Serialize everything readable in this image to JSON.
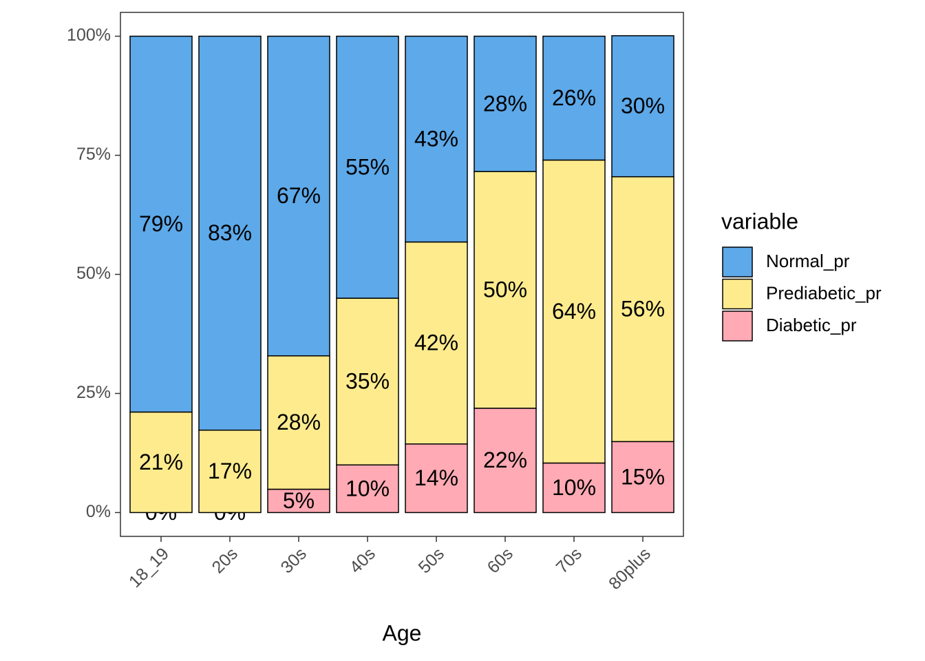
{
  "chart_data": {
    "type": "bar",
    "stacked": true,
    "x_label": "Age",
    "categories": [
      "18_19",
      "20s",
      "30s",
      "40s",
      "50s",
      "60s",
      "70s",
      "80plus"
    ],
    "series": [
      {
        "name": "Normal_pr",
        "color": "#5DA9E9",
        "values": [
          78.9,
          82.7,
          67.1,
          55.0,
          43.2,
          28.4,
          26.0,
          29.6
        ],
        "value_labels": [
          "79%",
          "83%",
          "67%",
          "55%",
          "43%",
          "28%",
          "26%",
          "30%"
        ]
      },
      {
        "name": "Prediabetic_pr",
        "color": "#FDEB8E",
        "values": [
          21.1,
          17.3,
          28.0,
          35.0,
          42.4,
          49.7,
          63.6,
          55.6
        ],
        "value_labels": [
          "21%",
          "17%",
          "28%",
          "35%",
          "42%",
          "50%",
          "64%",
          "56%"
        ]
      },
      {
        "name": "Diabetic_pr",
        "color": "#FFAAB4",
        "values": [
          0,
          0,
          4.9,
          10.0,
          14.4,
          21.9,
          10.4,
          14.9
        ],
        "value_labels": [
          "0%",
          "0%",
          "5%",
          "10%",
          "14%",
          "22%",
          "10%",
          "15%"
        ]
      }
    ],
    "legend_title": "variable",
    "legend_position": "right",
    "ylim": [
      -5,
      105
    ],
    "yticks": [
      {
        "value": 0,
        "label": "0%"
      },
      {
        "value": 25,
        "label": "25%"
      },
      {
        "value": 50,
        "label": "50%"
      },
      {
        "value": 75,
        "label": "75%"
      },
      {
        "value": 100,
        "label": "100%"
      }
    ]
  }
}
